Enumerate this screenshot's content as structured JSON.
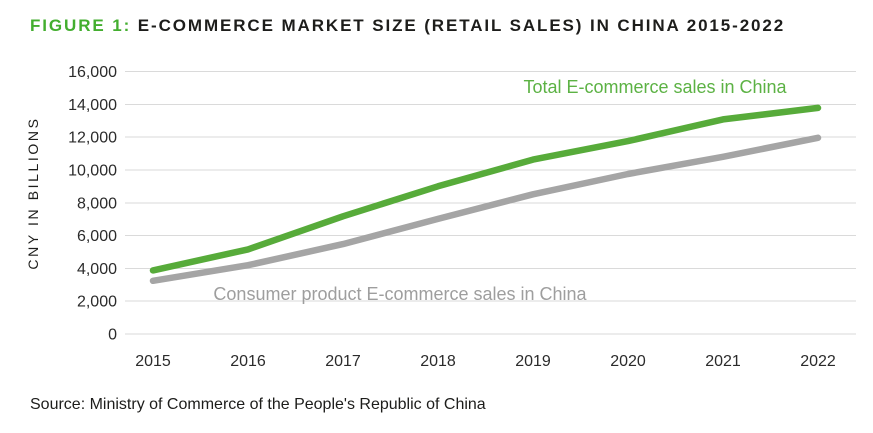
{
  "figure": {
    "label": "FIGURE 1:",
    "title": "E-COMMERCE MARKET SIZE (RETAIL SALES) IN CHINA 2015-2022"
  },
  "source": "Source: Ministry of Commerce of the People's Republic of China",
  "colors": {
    "accent_green": "#43ae2f",
    "line_green": "#57ab3a",
    "label_green": "#5cb244",
    "line_gray": "#a5a5a5",
    "label_gray": "#9e9e9e",
    "grid": "#dadada",
    "text_dark": "#1d1d1b",
    "tick_text": "#2b2b2b"
  },
  "chart_data": {
    "type": "line",
    "title": "E-COMMERCE MARKET SIZE (RETAIL SALES) IN CHINA 2015-2022",
    "categories": [
      "2015",
      "2016",
      "2017",
      "2018",
      "2019",
      "2020",
      "2021",
      "2022"
    ],
    "series": [
      {
        "name": "Total E-commerce sales in China",
        "color": "#57ab3a",
        "values": [
          3877,
          5156,
          7175,
          9007,
          10632,
          11760,
          13088,
          13786
        ]
      },
      {
        "name": "Consumer product E-commerce sales in China",
        "color": "#a5a5a5",
        "values": [
          3242,
          4194,
          5480,
          7020,
          8520,
          9759,
          10804,
          11964
        ]
      }
    ],
    "xlabel": "",
    "ylabel": "CNY IN BILLIONS",
    "ylim": [
      0,
      16000
    ],
    "ytick_step": 2000,
    "ytick_labels": [
      "0",
      "2,000",
      "4,000",
      "6,000",
      "8,000",
      "10,000",
      "12,000",
      "14,000",
      "16,000"
    ],
    "grid": true,
    "legend_position": "inline-labels"
  }
}
